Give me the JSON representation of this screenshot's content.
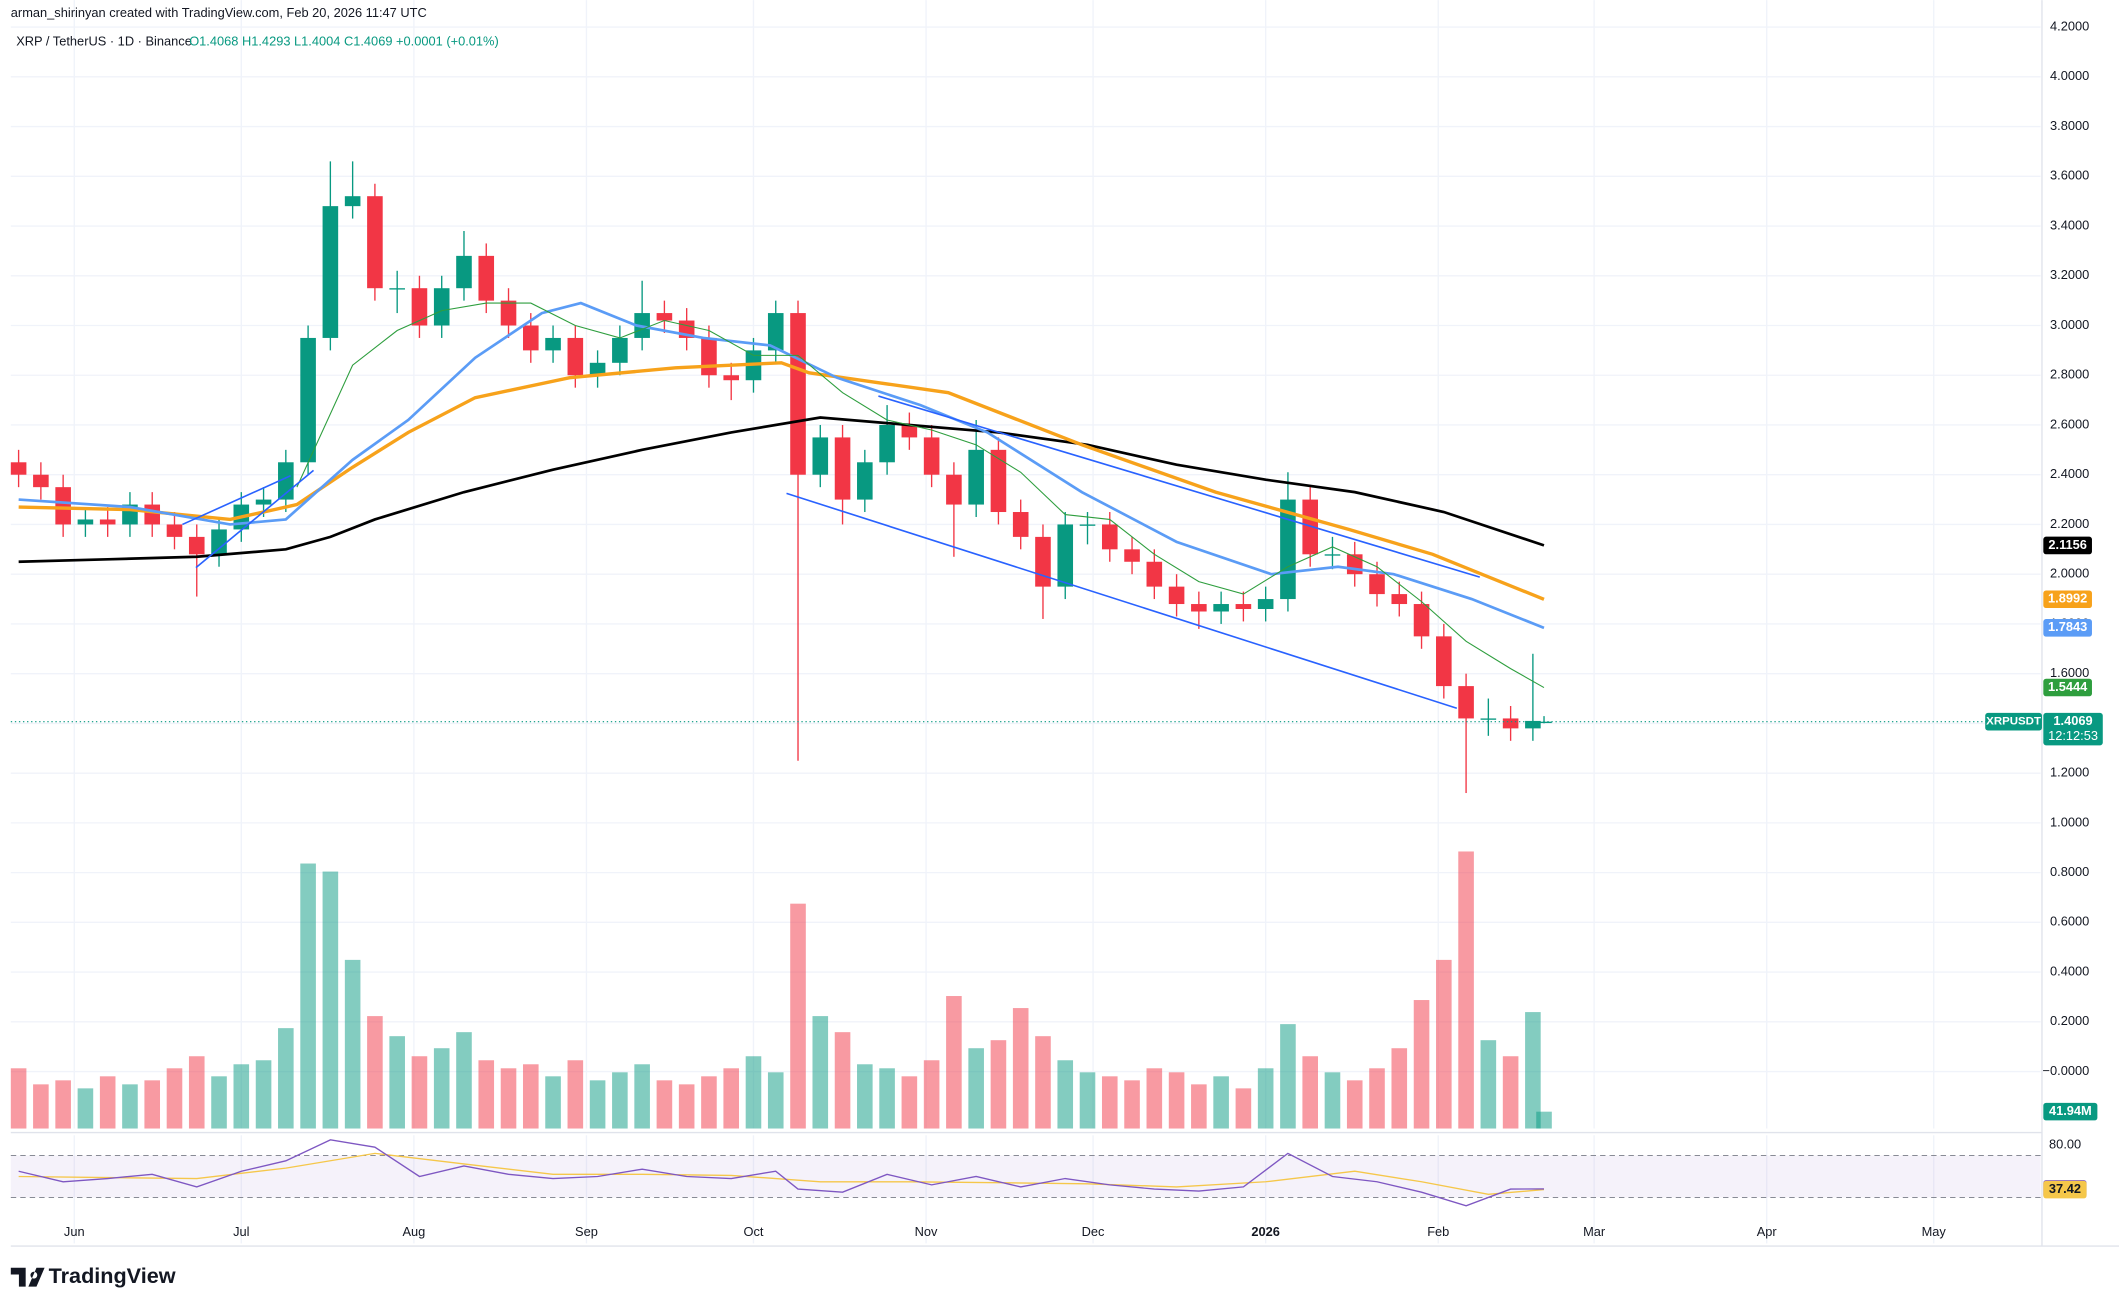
{
  "chart_data": {
    "type": "candlestick",
    "credit": "arman_shirinyan created with TradingView.com, Feb 20, 2026 11:47 UTC",
    "title": "XRP / TetherUS · 1D · Binance",
    "subtitle": "O1.4068 H1.4293 L1.4004 C1.4069 +0.0001 (+0.01%)",
    "brand": "TradingView",
    "up_color": "#089981",
    "down_color": "#f23645",
    "grid": true,
    "xlim": [
      -11.4,
      353.2
    ],
    "xticks": [
      {
        "value": 0,
        "label": "Jun"
      },
      {
        "value": 30,
        "label": "Jul"
      },
      {
        "value": 61,
        "label": "Aug"
      },
      {
        "value": 92,
        "label": "Sep"
      },
      {
        "value": 122,
        "label": "Oct"
      },
      {
        "value": 153,
        "label": "Nov"
      },
      {
        "value": 183,
        "label": "Dec"
      },
      {
        "value": 214,
        "label": "2026"
      },
      {
        "value": 245,
        "label": "Feb"
      },
      {
        "value": 273,
        "label": "Mar"
      },
      {
        "value": 304,
        "label": "Apr"
      },
      {
        "value": 334,
        "label": "May"
      }
    ],
    "ylim": [
      -0.229,
      4.227
    ],
    "yticks": [
      {
        "value": 4.2,
        "label": "4.2000"
      },
      {
        "value": 4.0,
        "label": "4.0000"
      },
      {
        "value": 3.8,
        "label": "3.8000"
      },
      {
        "value": 3.6,
        "label": "3.6000"
      },
      {
        "value": 3.4,
        "label": "3.4000"
      },
      {
        "value": 3.2,
        "label": "3.2000"
      },
      {
        "value": 3.0,
        "label": "3.0000"
      },
      {
        "value": 2.8,
        "label": "2.8000"
      },
      {
        "value": 2.6,
        "label": "2.6000"
      },
      {
        "value": 2.4,
        "label": "2.4000"
      },
      {
        "value": 2.2,
        "label": "2.2000"
      },
      {
        "value": 2.0,
        "label": "2.0000"
      },
      {
        "value": 1.8,
        "label": "1.8000"
      },
      {
        "value": 1.6,
        "label": "1.6000"
      },
      {
        "value": 1.4,
        "label": "1.4000"
      },
      {
        "value": 1.2,
        "label": "1.2000"
      },
      {
        "value": 1.0,
        "label": "1.0000"
      },
      {
        "value": 0.8,
        "label": "0.8000"
      },
      {
        "value": 0.6,
        "label": "0.6000"
      },
      {
        "value": 0.4,
        "label": "0.4000"
      },
      {
        "value": 0.2,
        "label": "0.2000"
      },
      {
        "value": 0,
        "label": "−0.0000"
      }
    ],
    "x": [
      -10,
      -6,
      -2,
      2,
      6,
      10,
      14,
      18,
      22,
      26,
      30,
      34,
      38,
      42,
      46,
      50,
      54,
      58,
      62,
      66,
      70,
      74,
      78,
      82,
      86,
      90,
      94,
      98,
      102,
      106,
      110,
      114,
      118,
      122,
      126,
      130,
      134,
      138,
      142,
      146,
      150,
      154,
      158,
      162,
      166,
      170,
      174,
      178,
      182,
      186,
      190,
      194,
      198,
      202,
      206,
      210,
      214,
      218,
      222,
      226,
      230,
      234,
      238,
      242,
      246,
      250,
      254,
      258,
      262,
      264
    ],
    "open": [
      2.45,
      2.4,
      2.35,
      2.2,
      2.22,
      2.2,
      2.28,
      2.2,
      2.15,
      2.08,
      2.18,
      2.28,
      2.3,
      2.45,
      2.95,
      3.48,
      3.52,
      3.15,
      3.15,
      3.0,
      3.15,
      3.28,
      3.1,
      3.0,
      2.9,
      2.95,
      2.8,
      2.85,
      2.95,
      3.05,
      3.02,
      2.95,
      2.8,
      2.78,
      2.9,
      3.05,
      2.4,
      2.55,
      2.3,
      2.45,
      2.6,
      2.55,
      2.4,
      2.28,
      2.5,
      2.25,
      2.15,
      1.95,
      2.2,
      2.2,
      2.1,
      2.05,
      1.95,
      1.88,
      1.85,
      1.88,
      1.86,
      1.9,
      2.3,
      2.08,
      2.08,
      2.0,
      1.92,
      1.88,
      1.75,
      1.55,
      1.42,
      1.42,
      1.38,
      1.4068
    ],
    "high": [
      2.5,
      2.45,
      2.4,
      2.27,
      2.27,
      2.33,
      2.33,
      2.25,
      2.2,
      2.23,
      2.33,
      2.35,
      2.5,
      3.0,
      3.66,
      3.66,
      3.57,
      3.22,
      3.2,
      3.2,
      3.38,
      3.33,
      3.15,
      3.05,
      3.0,
      3.0,
      2.9,
      3.0,
      3.18,
      3.1,
      3.07,
      3.0,
      2.85,
      2.95,
      3.1,
      3.1,
      2.6,
      2.6,
      2.5,
      2.68,
      2.65,
      2.6,
      2.45,
      2.62,
      2.55,
      2.3,
      2.2,
      2.25,
      2.25,
      2.25,
      2.15,
      2.1,
      2.0,
      1.93,
      1.93,
      1.93,
      1.95,
      2.41,
      2.35,
      2.15,
      2.13,
      2.05,
      1.97,
      1.93,
      1.8,
      1.6,
      1.5,
      1.47,
      1.68,
      1.4293
    ],
    "low": [
      2.35,
      2.3,
      2.15,
      2.15,
      2.15,
      2.15,
      2.15,
      2.1,
      1.91,
      2.03,
      2.13,
      2.23,
      2.25,
      2.4,
      2.9,
      3.43,
      3.1,
      3.05,
      2.95,
      2.95,
      3.1,
      3.05,
      2.95,
      2.85,
      2.85,
      2.75,
      2.75,
      2.8,
      2.9,
      2.97,
      2.9,
      2.75,
      2.7,
      2.73,
      2.85,
      1.25,
      2.35,
      2.2,
      2.25,
      2.4,
      2.5,
      2.35,
      2.07,
      2.23,
      2.2,
      2.1,
      1.82,
      1.9,
      2.12,
      2.05,
      2.0,
      1.9,
      1.83,
      1.78,
      1.8,
      1.81,
      1.81,
      1.85,
      2.03,
      2.02,
      1.95,
      1.87,
      1.83,
      1.7,
      1.5,
      1.12,
      1.35,
      1.33,
      1.33,
      1.4004
    ],
    "close": [
      2.4,
      2.35,
      2.2,
      2.22,
      2.2,
      2.28,
      2.2,
      2.15,
      2.08,
      2.18,
      2.28,
      2.3,
      2.45,
      2.95,
      3.48,
      3.52,
      3.15,
      3.15,
      3.0,
      3.15,
      3.28,
      3.1,
      3.0,
      2.9,
      2.95,
      2.8,
      2.85,
      2.95,
      3.05,
      3.02,
      2.95,
      2.8,
      2.78,
      2.9,
      3.05,
      2.4,
      2.55,
      2.3,
      2.45,
      2.6,
      2.55,
      2.4,
      2.28,
      2.5,
      2.25,
      2.15,
      1.95,
      2.2,
      2.2,
      2.1,
      2.05,
      1.95,
      1.88,
      1.85,
      1.88,
      1.86,
      1.9,
      2.3,
      2.08,
      2.08,
      2.0,
      1.92,
      1.88,
      1.75,
      1.55,
      1.42,
      1.42,
      1.38,
      1.41,
      1.4069
    ],
    "volume": [
      150,
      110,
      120,
      100,
      130,
      110,
      120,
      150,
      180,
      130,
      160,
      170,
      250,
      660,
      640,
      420,
      280,
      230,
      180,
      200,
      240,
      170,
      150,
      160,
      130,
      170,
      120,
      140,
      160,
      120,
      110,
      130,
      150,
      180,
      140,
      560,
      280,
      240,
      160,
      150,
      130,
      170,
      330,
      200,
      220,
      300,
      230,
      170,
      140,
      130,
      120,
      150,
      140,
      110,
      130,
      100,
      150,
      260,
      180,
      140,
      120,
      150,
      200,
      320,
      420,
      690,
      220,
      180,
      290,
      41.94
    ],
    "volume_label": "41.94M",
    "last_price_symbol": "XRPUSDT",
    "countdown": "12:12:53",
    "moving_averages": [
      {
        "color": "#000000",
        "width": 2,
        "x": [
          -10,
          6,
          22,
          38,
          46,
          54,
          70,
          86,
          102,
          118,
          134,
          150,
          166,
          182,
          198,
          214,
          230,
          246,
          264
        ],
        "values": [
          2.05,
          2.06,
          2.07,
          2.1,
          2.15,
          2.22,
          2.33,
          2.42,
          2.5,
          2.57,
          2.63,
          2.6,
          2.57,
          2.52,
          2.44,
          2.38,
          2.33,
          2.25,
          2.1156
        ]
      },
      {
        "color": "#f7a21b",
        "width": 2.5,
        "x": [
          -10,
          10,
          28,
          40,
          50,
          60,
          72,
          89,
          108,
          127,
          132,
          157,
          181,
          205,
          229,
          244,
          264
        ],
        "values": [
          2.27,
          2.26,
          2.22,
          2.28,
          2.43,
          2.57,
          2.71,
          2.79,
          2.83,
          2.85,
          2.81,
          2.73,
          2.52,
          2.33,
          2.18,
          2.08,
          1.8992
        ]
      },
      {
        "color": "#5b9cf6",
        "width": 2,
        "x": [
          -10,
          10,
          28,
          38,
          50,
          60,
          72,
          84,
          91,
          101,
          113,
          125,
          137,
          152,
          164,
          181,
          198,
          215,
          227,
          237,
          251,
          264
        ],
        "values": [
          2.3,
          2.27,
          2.2,
          2.22,
          2.46,
          2.62,
          2.87,
          3.05,
          3.09,
          3.0,
          2.95,
          2.92,
          2.79,
          2.68,
          2.57,
          2.33,
          2.13,
          2.0,
          2.03,
          2.0,
          1.9,
          1.7843
        ]
      },
      {
        "color": "#2e9e3e",
        "width": 0.8,
        "x": [
          40,
          50,
          58,
          66,
          74,
          82,
          90,
          98,
          106,
          114,
          122,
          130,
          138,
          146,
          154,
          162,
          170,
          178,
          186,
          194,
          202,
          210,
          218,
          226,
          234,
          242,
          250,
          258,
          264
        ],
        "values": [
          2.35,
          2.84,
          2.98,
          3.06,
          3.09,
          3.09,
          3.0,
          2.95,
          3.02,
          2.98,
          2.88,
          2.88,
          2.73,
          2.62,
          2.58,
          2.52,
          2.41,
          2.24,
          2.22,
          2.08,
          1.97,
          1.92,
          2.03,
          2.11,
          2.03,
          1.89,
          1.73,
          1.62,
          1.5444
        ]
      }
    ],
    "rsi_ylim": [
      -13.9,
      82.9
    ],
    "rsi_yticks": [
      {
        "value": 80,
        "label": "80.00"
      }
    ],
    "rsi_band": [
      30,
      70
    ],
    "rsi": {
      "color": "#7e57c2",
      "x": [
        -10,
        -2,
        6,
        14,
        22,
        30,
        38,
        46,
        54,
        62,
        70,
        78,
        86,
        94,
        102,
        110,
        118,
        126,
        130,
        138,
        146,
        154,
        162,
        170,
        178,
        186,
        194,
        202,
        210,
        218,
        226,
        234,
        242,
        250,
        258,
        264
      ],
      "values": [
        55,
        45,
        48,
        52,
        40,
        55,
        65,
        85,
        78,
        50,
        60,
        52,
        48,
        50,
        57,
        50,
        48,
        55,
        38,
        35,
        52,
        42,
        50,
        40,
        48,
        42,
        38,
        36,
        40,
        72,
        50,
        45,
        35,
        22,
        38,
        38.14
      ]
    },
    "rsi_ma": {
      "color": "#f5c74a",
      "x": [
        -10,
        6,
        22,
        38,
        54,
        70,
        86,
        102,
        118,
        134,
        150,
        166,
        182,
        198,
        214,
        230,
        242,
        254,
        264
      ],
      "values": [
        50,
        49,
        48,
        58,
        72,
        62,
        52,
        52,
        51,
        45,
        45,
        44,
        43,
        40,
        45,
        55,
        45,
        33,
        37.42
      ]
    }
  }
}
